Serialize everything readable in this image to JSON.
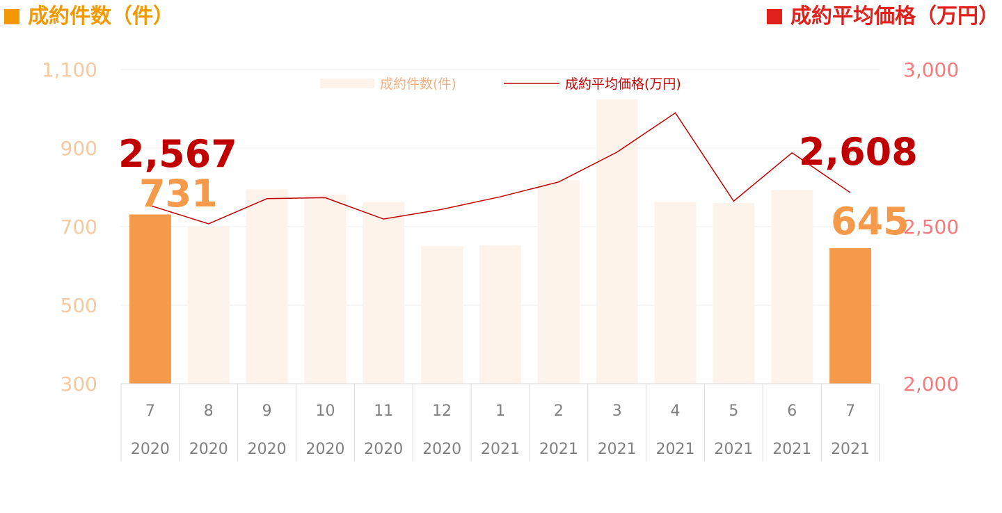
{
  "header": {
    "left_title": "成約件数（件）",
    "right_title": "成約平均価格（万円）"
  },
  "colors": {
    "orange_text": "#f39800",
    "red_text": "#e0201b",
    "bar_light": "#fdf3ea",
    "bar_highlight": "#f59a4a",
    "line": "#c00000",
    "left_axis": "#f8c9a0",
    "right_axis": "#f47b7b",
    "grid": "#eeeeee",
    "table_border": "#d9d9d9"
  },
  "chart_data": {
    "type": "bar",
    "categories": [
      "7",
      "8",
      "9",
      "10",
      "11",
      "12",
      "1",
      "2",
      "3",
      "4",
      "5",
      "6",
      "7"
    ],
    "years": [
      "2020",
      "2020",
      "2020",
      "2020",
      "2020",
      "2020",
      "2021",
      "2021",
      "2021",
      "2021",
      "2021",
      "2021",
      "2021"
    ],
    "series": [
      {
        "name": "成約件数(件)",
        "type": "bar",
        "axis": "left",
        "values": [
          731,
          700,
          795,
          782,
          763,
          650,
          653,
          818,
          1024,
          763,
          760,
          793,
          645
        ],
        "highlight_indices": [
          0,
          12
        ]
      },
      {
        "name": "成約平均価格(万円)",
        "type": "line",
        "axis": "right",
        "values": [
          2567,
          2509,
          2589,
          2592,
          2524,
          2555,
          2595,
          2642,
          2737,
          2862,
          2581,
          2735,
          2608
        ]
      }
    ],
    "left_axis": {
      "ylim": [
        300,
        1100
      ],
      "ticks": [
        "300",
        "500",
        "700",
        "900",
        "1,100"
      ]
    },
    "right_axis": {
      "ylim": [
        2000,
        3000
      ],
      "ticks": [
        "2,000",
        "2,500",
        "3,000"
      ]
    },
    "annotations": {
      "first_price": "2,567",
      "first_count": "731",
      "last_price": "2,608",
      "last_count": "645"
    },
    "legend": {
      "bar_label": "成約件数(件)",
      "line_label": "成約平均価格(万円)",
      "position": "top-center"
    },
    "grid": true
  }
}
